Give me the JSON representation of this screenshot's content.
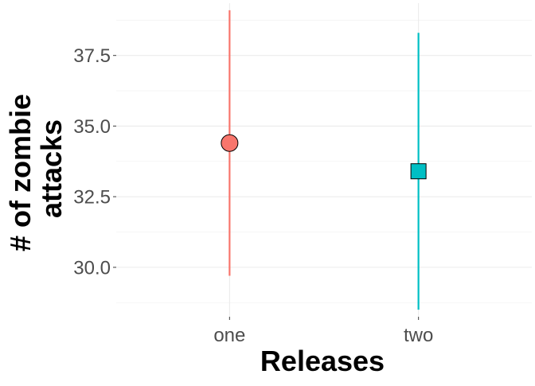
{
  "chart_data": {
    "type": "errorbar",
    "xlabel": "Releases",
    "ylabel_lines": [
      "# of zombie",
      "attacks"
    ],
    "categories": [
      "one",
      "two"
    ],
    "points": [
      {
        "category": "one",
        "y": 34.4,
        "ymin": 29.7,
        "ymax": 39.1,
        "color": "#F8766D",
        "shape": "circle"
      },
      {
        "category": "two",
        "y": 33.4,
        "ymin": 28.5,
        "ymax": 38.3,
        "color": "#00BFC4",
        "shape": "square"
      }
    ],
    "y_ticks": [
      30.0,
      32.5,
      35.0,
      37.5
    ],
    "y_tick_labels": [
      "30.0",
      "32.5",
      "35.0",
      "37.5"
    ],
    "ylim": [
      28.25,
      39.35
    ],
    "legend": "none",
    "grid": true
  }
}
